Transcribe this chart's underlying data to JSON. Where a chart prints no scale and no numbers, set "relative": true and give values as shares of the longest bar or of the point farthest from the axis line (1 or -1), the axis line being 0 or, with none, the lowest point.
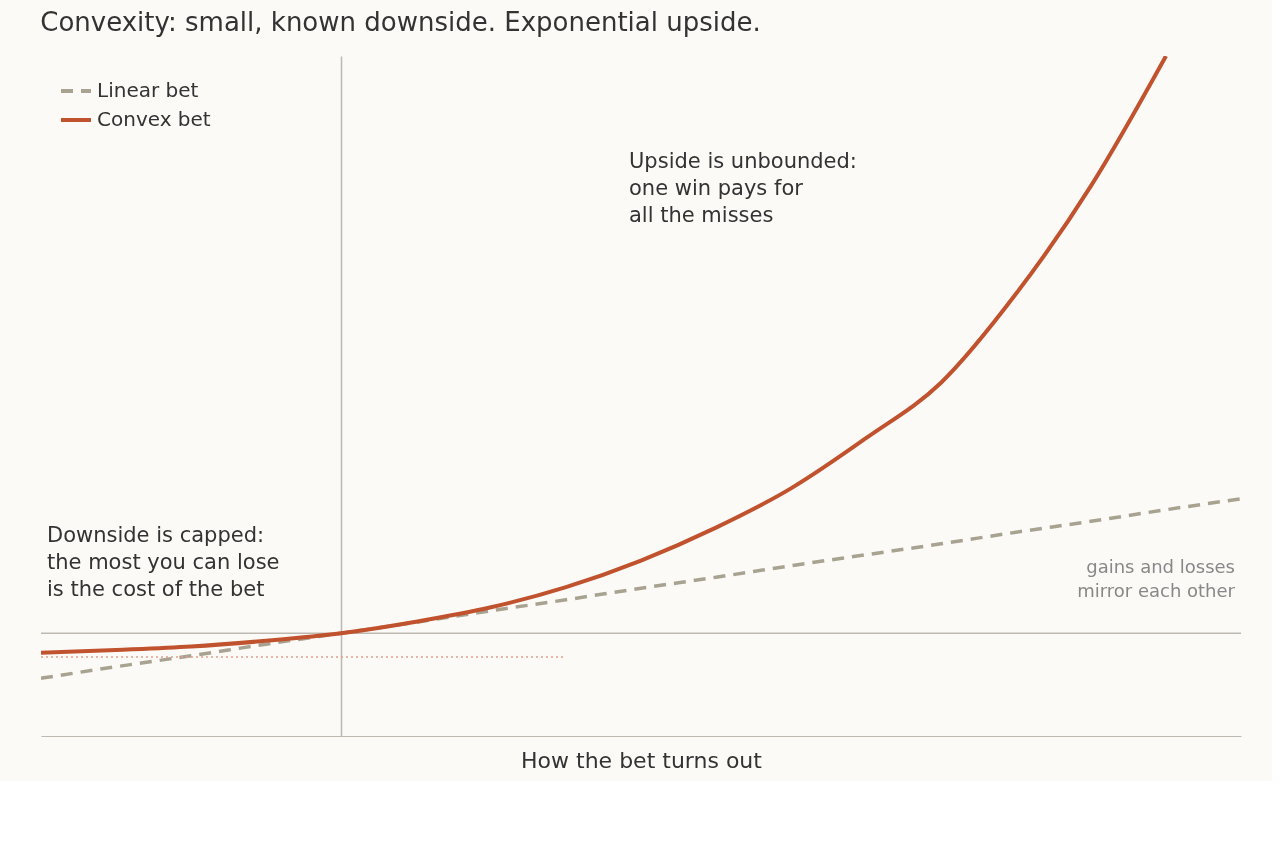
{
  "chart_data": {
    "type": "line",
    "title": "Convexity: small, known downside. Exponential upside.",
    "xlabel": "How the bet turns out",
    "relative": true,
    "legend": "top left",
    "categories": [
      null,
      null,
      null,
      null,
      null,
      null,
      null,
      null,
      null,
      null,
      null,
      null,
      null,
      null,
      null,
      null,
      null
    ],
    "series": [
      {
        "name": "Linear bet",
        "color": "#a8a291",
        "line_style": "dashed",
        "values": [
          -0.078,
          -0.058,
          -0.039,
          -0.019,
          0,
          0.019,
          0.039,
          0.058,
          0.078,
          0.097,
          0.117,
          0.136,
          0.155,
          0.175,
          0.194,
          0.214,
          0.233
        ]
      },
      {
        "name": "Convex bet",
        "color": "#c0522d",
        "line_style": "solid",
        "values": [
          -0.034,
          -0.029,
          -0.023,
          -0.013,
          0,
          0.02,
          0.045,
          0.08,
          0.126,
          0.183,
          0.251,
          0.338,
          0.434,
          0.588,
          0.775,
          1.0,
          null
        ]
      },
      {
        "color": "#e0a090",
        "line_style": "dotted",
        "values": [
          -0.041,
          -0.041,
          -0.041,
          -0.041,
          -0.041,
          -0.041,
          -0.041,
          -0.041,
          null,
          null,
          null,
          null,
          null,
          null,
          null,
          null,
          null
        ]
      }
    ],
    "ref_lines": [
      {
        "axis": "y",
        "value": 0,
        "color": "#bdb8b0"
      }
    ],
    "annotations": [
      "Upside is unbounded:\none win pays for\nall the misses",
      "Downside is capped:\nthe most you can lose\nis the cost of the bet",
      "gains and losses\nmirror each other"
    ]
  }
}
